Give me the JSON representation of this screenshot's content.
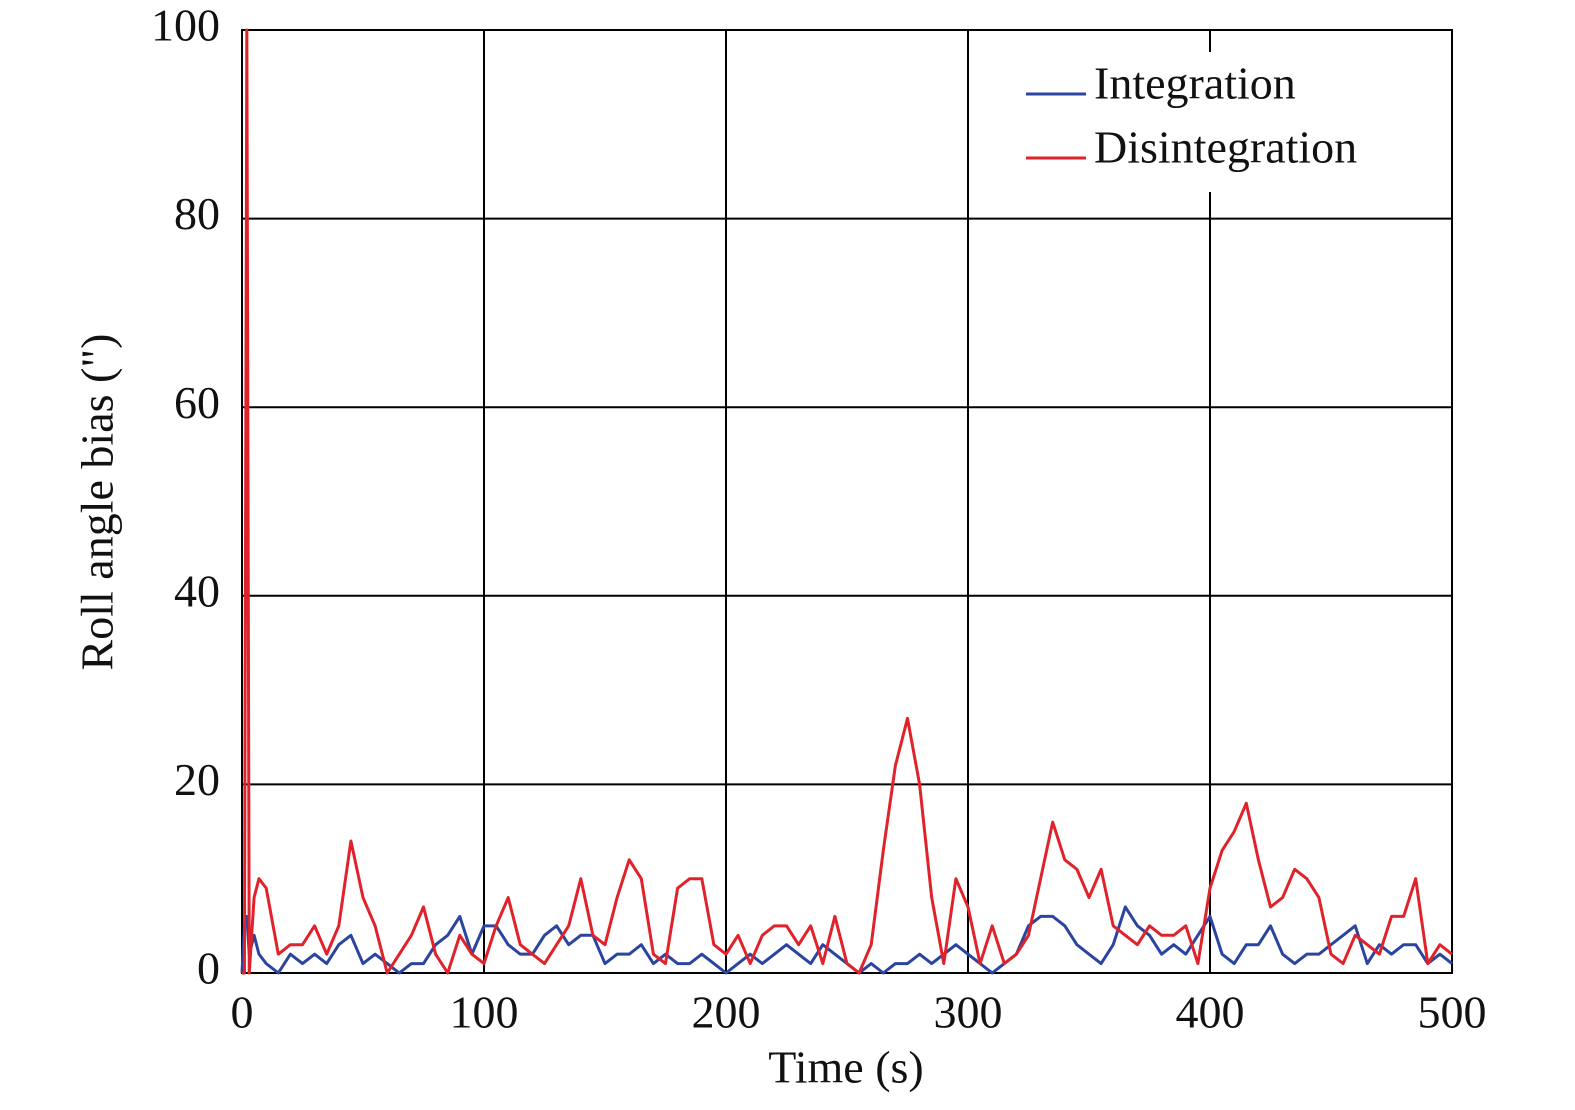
{
  "chart_data": {
    "type": "line",
    "xlabel": "Time (s)",
    "ylabel": "Roll angle bias (\")",
    "x": [
      0,
      1,
      2,
      3,
      5,
      7,
      10,
      15,
      20,
      25,
      30,
      35,
      40,
      45,
      50,
      55,
      60,
      65,
      70,
      75,
      80,
      85,
      90,
      95,
      100,
      105,
      110,
      115,
      120,
      125,
      130,
      135,
      140,
      145,
      150,
      155,
      160,
      165,
      170,
      175,
      180,
      185,
      190,
      195,
      200,
      205,
      210,
      215,
      220,
      225,
      230,
      235,
      240,
      245,
      250,
      255,
      260,
      265,
      270,
      275,
      280,
      285,
      290,
      295,
      300,
      305,
      310,
      315,
      320,
      325,
      330,
      335,
      340,
      345,
      350,
      355,
      360,
      365,
      370,
      375,
      380,
      385,
      390,
      395,
      400,
      405,
      410,
      415,
      420,
      425,
      430,
      435,
      440,
      445,
      450,
      455,
      460,
      465,
      470,
      475,
      480,
      485,
      490,
      495,
      500
    ],
    "series": [
      {
        "name": "Integration",
        "color": "#2b44a0",
        "values": [
          0,
          5,
          6,
          2,
          4,
          2,
          1,
          0,
          2,
          1,
          2,
          1,
          3,
          4,
          1,
          2,
          1,
          0,
          1,
          1,
          3,
          4,
          6,
          2,
          5,
          5,
          3,
          2,
          2,
          4,
          5,
          3,
          4,
          4,
          1,
          2,
          2,
          3,
          1,
          2,
          1,
          1,
          2,
          1,
          0,
          1,
          2,
          1,
          2,
          3,
          2,
          1,
          3,
          2,
          1,
          0,
          1,
          0,
          1,
          1,
          2,
          1,
          2,
          3,
          2,
          1,
          0,
          1,
          2,
          5,
          6,
          6,
          5,
          3,
          2,
          1,
          3,
          7,
          5,
          4,
          2,
          3,
          2,
          4,
          6,
          2,
          1,
          3,
          3,
          5,
          2,
          1,
          2,
          2,
          3,
          4,
          5,
          1,
          3,
          2,
          3,
          3,
          1,
          2,
          1
        ]
      },
      {
        "name": "Disintegration",
        "color": "#e0232b",
        "values": [
          0,
          0,
          100,
          0,
          8,
          10,
          9,
          2,
          3,
          3,
          5,
          2,
          5,
          14,
          8,
          5,
          0,
          2,
          4,
          7,
          2,
          0,
          4,
          2,
          1,
          5,
          8,
          3,
          2,
          1,
          3,
          5,
          10,
          4,
          3,
          8,
          12,
          10,
          2,
          1,
          9,
          10,
          10,
          3,
          2,
          4,
          1,
          4,
          5,
          5,
          3,
          5,
          1,
          6,
          1,
          0,
          3,
          13,
          22,
          27,
          20,
          8,
          1,
          10,
          7,
          1,
          5,
          1,
          2,
          4,
          10,
          16,
          12,
          11,
          8,
          11,
          5,
          4,
          3,
          5,
          4,
          4,
          5,
          1,
          9,
          13,
          15,
          18,
          12,
          7,
          8,
          11,
          10,
          8,
          2,
          1,
          4,
          3,
          2,
          6,
          6,
          10,
          1,
          3,
          2
        ]
      }
    ],
    "xlim": [
      0,
      500
    ],
    "xticks": [
      0,
      100,
      200,
      300,
      400,
      500
    ],
    "ylim": [
      0,
      100
    ],
    "yticks": [
      0,
      20,
      40,
      60,
      80,
      100
    ],
    "grid": true,
    "legend": "upper right"
  }
}
